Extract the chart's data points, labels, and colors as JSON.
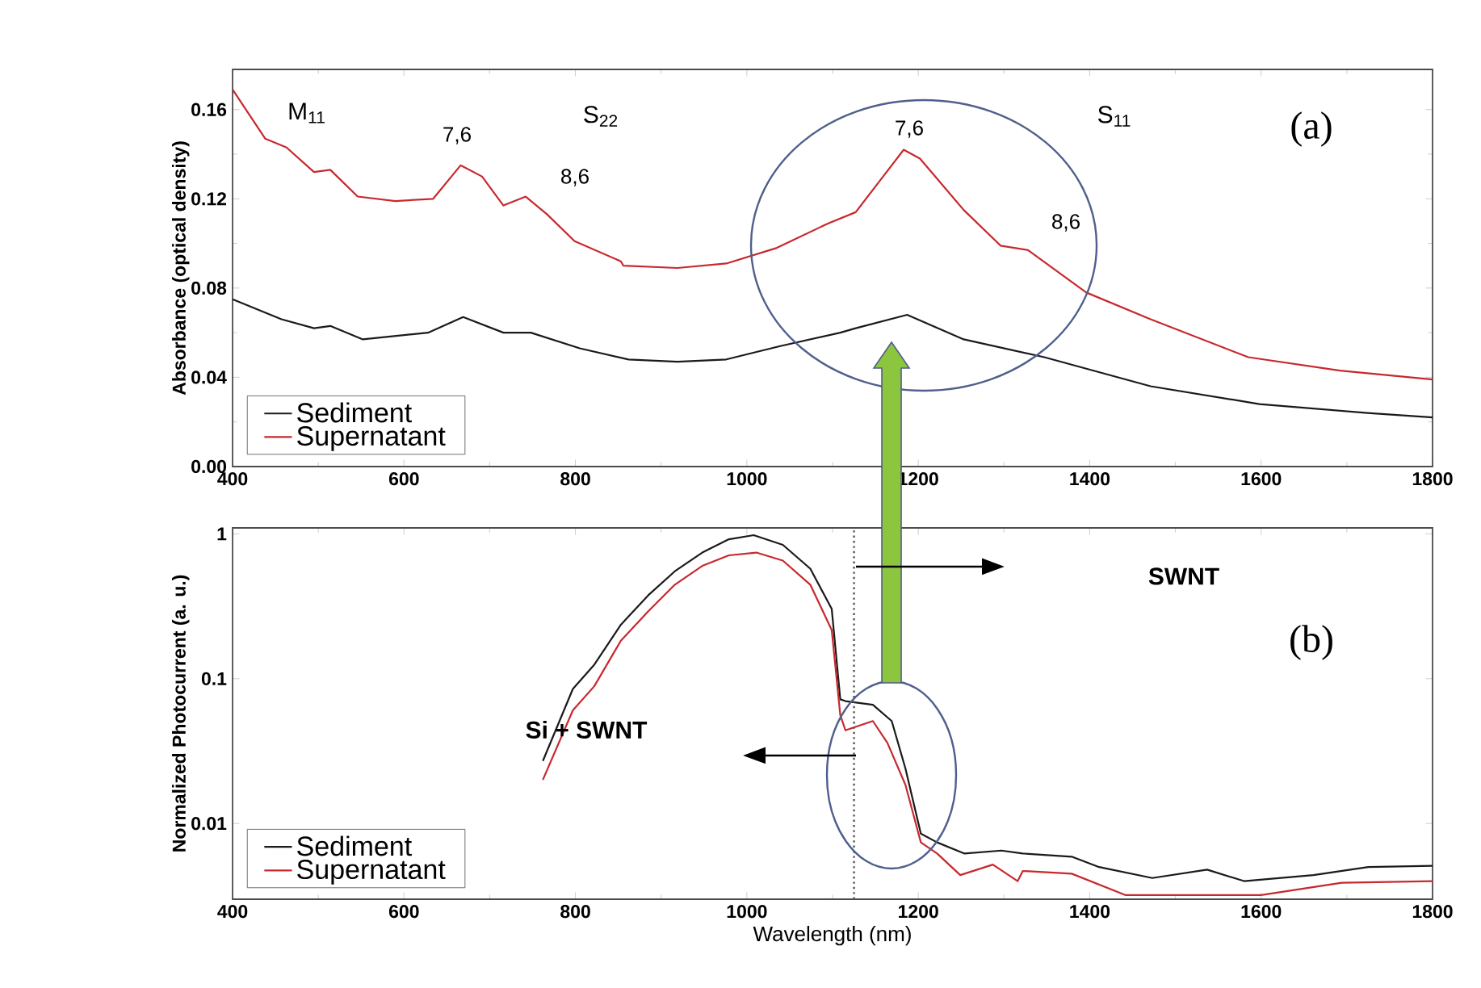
{
  "chart_data": [
    {
      "type": "line",
      "ylabel": "Absorbance (optical density)",
      "xlim": [
        400,
        1800
      ],
      "xticks": [
        400,
        600,
        800,
        1000,
        1200,
        1400,
        1600,
        1800
      ],
      "ylim": [
        0,
        0.178
      ],
      "yticks": [
        {
          "value": 0,
          "label": "0.00"
        },
        0.04,
        0.08,
        0.12,
        0.16
      ],
      "legend": "bottom left",
      "annotations": [
        "M$_{11}$",
        "S$_{22}$",
        "7,6",
        "8,6",
        "S$_{11}$",
        "7,6",
        "8,6",
        "(a)"
      ],
      "series": [
        {
          "name": "Sediment",
          "color": "#1a1a1a",
          "x": [
            400,
            457,
            495,
            514,
            552,
            628,
            669,
            716,
            748,
            805,
            862,
            919,
            976,
            1039,
            1109,
            1127,
            1187,
            1253,
            1347,
            1471,
            1598,
            1724,
            1800
          ],
          "values": [
            0.075,
            0.066,
            0.062,
            0.063,
            0.057,
            0.06,
            0.067,
            0.06,
            0.06,
            0.053,
            0.048,
            0.047,
            0.048,
            0.054,
            0.06,
            0.062,
            0.068,
            0.057,
            0.049,
            0.036,
            0.028,
            0.024,
            0.022
          ]
        },
        {
          "name": "Supernatant",
          "color": "#c8282d",
          "x": [
            400,
            438,
            463,
            495,
            514,
            546,
            590,
            634,
            666,
            691,
            716,
            742,
            767,
            799,
            853,
            856,
            919,
            976,
            1035,
            1095,
            1127,
            1159,
            1183,
            1202,
            1253,
            1296,
            1328,
            1396,
            1471,
            1585,
            1692,
            1800
          ],
          "values": [
            0.169,
            0.147,
            0.143,
            0.132,
            0.133,
            0.121,
            0.119,
            0.12,
            0.135,
            0.13,
            0.117,
            0.121,
            0.113,
            0.101,
            0.092,
            0.09,
            0.089,
            0.091,
            0.098,
            0.109,
            0.114,
            0.13,
            0.142,
            0.138,
            0.115,
            0.099,
            0.097,
            0.078,
            0.066,
            0.049,
            0.043,
            0.039
          ]
        }
      ]
    },
    {
      "type": "line",
      "xlabel": "Wavelength (nm)",
      "ylabel": "Normalized Photocurrent (a. u.)",
      "log": "y",
      "xlim": [
        400,
        1800
      ],
      "xticks": [
        400,
        600,
        800,
        1000,
        1200,
        1400,
        1600,
        1800
      ],
      "ylim": [
        0.003,
        1.1
      ],
      "yticks": [
        1,
        0.1,
        0.01
      ],
      "legend": "bottom left",
      "ref_lines": [
        {
          "axis": "x",
          "value": 1125,
          "line_style": "dotted",
          "color": "#555555"
        }
      ],
      "annotations": [
        "(b)",
        "SWNT",
        "Si + SWNT"
      ],
      "series": [
        {
          "name": "Sediment",
          "color": "#1a1a1a",
          "x": [
            762,
            797,
            822,
            853,
            885,
            916,
            948,
            979,
            1008,
            1042,
            1074,
            1099,
            1109,
            1115,
            1147,
            1169,
            1185,
            1203,
            1222,
            1254,
            1297,
            1322,
            1379,
            1411,
            1473,
            1537,
            1580,
            1661,
            1725,
            1800
          ],
          "values": [
            0.027,
            0.085,
            0.125,
            0.236,
            0.377,
            0.552,
            0.743,
            0.918,
            0.98,
            0.84,
            0.575,
            0.304,
            0.072,
            0.07,
            0.066,
            0.051,
            0.024,
            0.0085,
            0.0074,
            0.0062,
            0.0065,
            0.0062,
            0.0059,
            0.005,
            0.0042,
            0.0048,
            0.004,
            0.0044,
            0.005,
            0.0051
          ]
        },
        {
          "name": "Supernatant",
          "color": "#c8282d",
          "x": [
            762,
            797,
            822,
            853,
            885,
            916,
            948,
            979,
            1011,
            1042,
            1074,
            1099,
            1109,
            1115,
            1147,
            1164,
            1185,
            1203,
            1222,
            1249,
            1287,
            1316,
            1322,
            1379,
            1442,
            1537,
            1600,
            1694,
            1800
          ],
          "values": [
            0.02,
            0.0605,
            0.0887,
            0.183,
            0.292,
            0.446,
            0.601,
            0.711,
            0.743,
            0.654,
            0.446,
            0.217,
            0.056,
            0.044,
            0.051,
            0.036,
            0.0185,
            0.0074,
            0.0062,
            0.0044,
            0.0052,
            0.004,
            0.0047,
            0.0045,
            0.0032,
            0.0032,
            0.0032,
            0.0039,
            0.004
          ]
        }
      ]
    }
  ]
}
